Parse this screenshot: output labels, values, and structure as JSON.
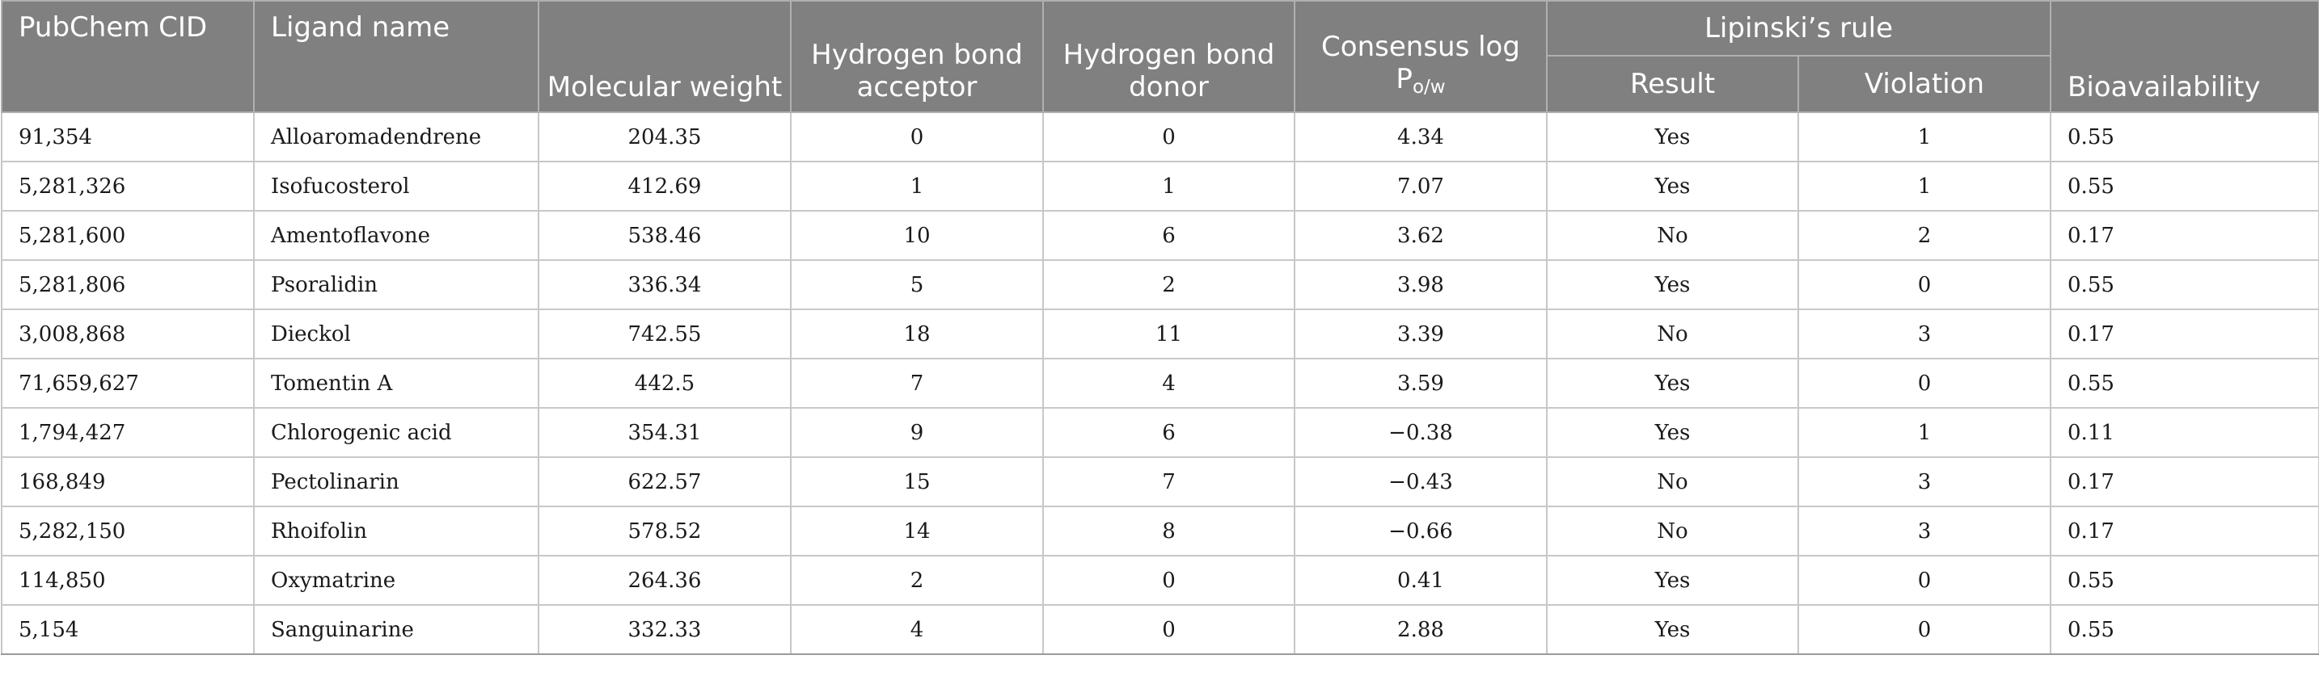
{
  "header": {
    "cid": "PubChem CID",
    "ligand": "Ligand name",
    "mw": "Molecular weight",
    "hba": "Hydrogen bond acceptor",
    "hbd": "Hydrogen bond donor",
    "logp_main": "Consensus log P",
    "logp_sub": "o/w",
    "lipinski": "Lipinski’s rule",
    "result": "Result",
    "violation": "Violation",
    "bioavailability": "Bioavailability"
  },
  "rows": [
    {
      "cid": "91,354",
      "ligand": "Alloaromadendrene",
      "mw": "204.35",
      "hba": "0",
      "hbd": "0",
      "logp": "4.34",
      "result": "Yes",
      "violation": "1",
      "bio": "0.55"
    },
    {
      "cid": "5,281,326",
      "ligand": "Isofucosterol",
      "mw": "412.69",
      "hba": "1",
      "hbd": "1",
      "logp": "7.07",
      "result": "Yes",
      "violation": "1",
      "bio": "0.55"
    },
    {
      "cid": "5,281,600",
      "ligand": "Amentoflavone",
      "mw": "538.46",
      "hba": "10",
      "hbd": "6",
      "logp": "3.62",
      "result": "No",
      "violation": "2",
      "bio": "0.17"
    },
    {
      "cid": "5,281,806",
      "ligand": "Psoralidin",
      "mw": "336.34",
      "hba": "5",
      "hbd": "2",
      "logp": "3.98",
      "result": "Yes",
      "violation": "0",
      "bio": "0.55"
    },
    {
      "cid": "3,008,868",
      "ligand": "Dieckol",
      "mw": "742.55",
      "hba": "18",
      "hbd": "11",
      "logp": "3.39",
      "result": "No",
      "violation": "3",
      "bio": "0.17"
    },
    {
      "cid": "71,659,627",
      "ligand": "Tomentin A",
      "mw": "442.5",
      "hba": "7",
      "hbd": "4",
      "logp": "3.59",
      "result": "Yes",
      "violation": "0",
      "bio": "0.55"
    },
    {
      "cid": "1,794,427",
      "ligand": "Chlorogenic acid",
      "mw": "354.31",
      "hba": "9",
      "hbd": "6",
      "logp": "−0.38",
      "result": "Yes",
      "violation": "1",
      "bio": "0.11"
    },
    {
      "cid": "168,849",
      "ligand": "Pectolinarin",
      "mw": "622.57",
      "hba": "15",
      "hbd": "7",
      "logp": "−0.43",
      "result": "No",
      "violation": "3",
      "bio": "0.17"
    },
    {
      "cid": "5,282,150",
      "ligand": "Rhoifolin",
      "mw": "578.52",
      "hba": "14",
      "hbd": "8",
      "logp": "−0.66",
      "result": "No",
      "violation": "3",
      "bio": "0.17"
    },
    {
      "cid": "114,850",
      "ligand": "Oxymatrine",
      "mw": "264.36",
      "hba": "2",
      "hbd": "0",
      "logp": "0.41",
      "result": "Yes",
      "violation": "0",
      "bio": "0.55"
    },
    {
      "cid": "5,154",
      "ligand": "Sanguinarine",
      "mw": "332.33",
      "hba": "4",
      "hbd": "0",
      "logp": "2.88",
      "result": "Yes",
      "violation": "0",
      "bio": "0.55"
    }
  ]
}
